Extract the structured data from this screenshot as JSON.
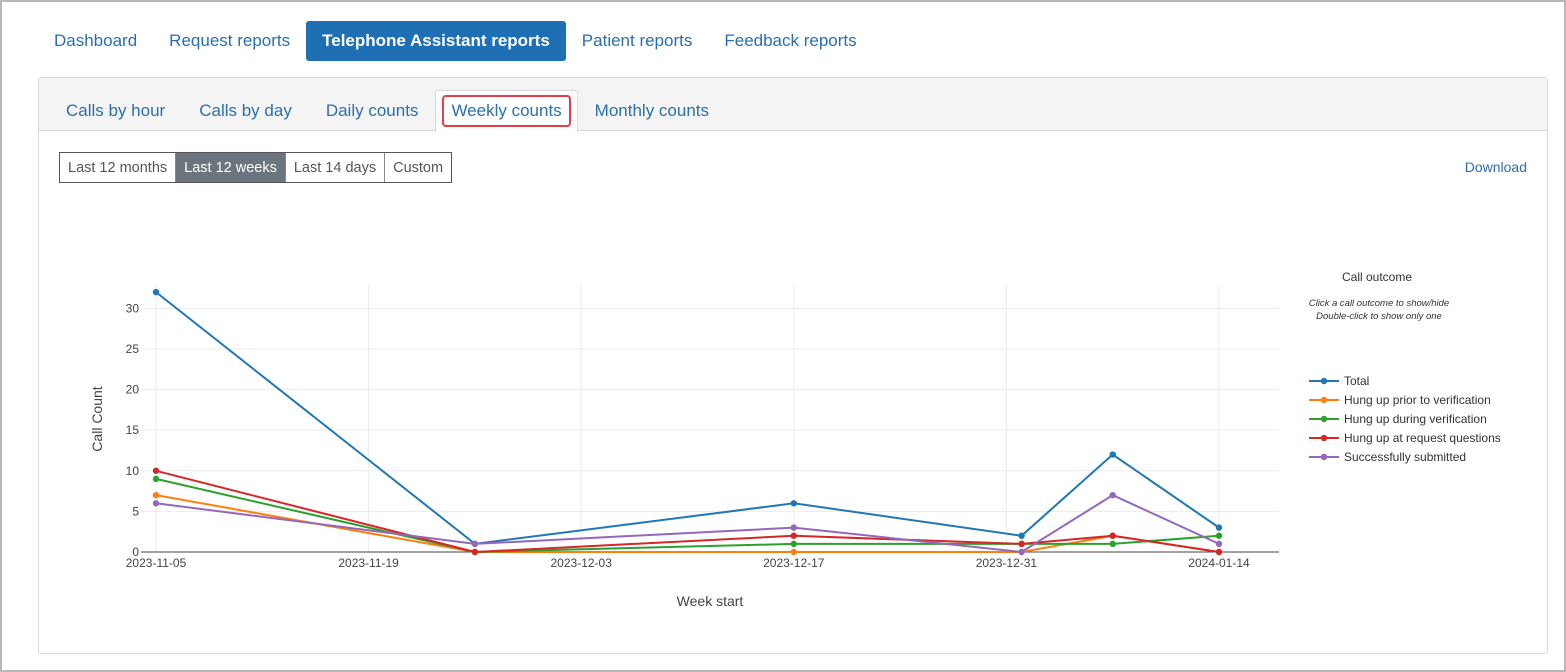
{
  "nav": {
    "tabs": [
      {
        "label": "Dashboard"
      },
      {
        "label": "Request reports"
      },
      {
        "label": "Telephone Assistant reports"
      },
      {
        "label": "Patient reports"
      },
      {
        "label": "Feedback reports"
      }
    ],
    "active_index": 2
  },
  "subnav": {
    "tabs": [
      {
        "label": "Calls by hour"
      },
      {
        "label": "Calls by day"
      },
      {
        "label": "Daily counts"
      },
      {
        "label": "Weekly counts"
      },
      {
        "label": "Monthly counts"
      }
    ],
    "active_index": 3
  },
  "range": {
    "buttons": [
      {
        "label": "Last 12 months"
      },
      {
        "label": "Last 12 weeks"
      },
      {
        "label": "Last 14 days"
      },
      {
        "label": "Custom"
      }
    ],
    "active_index": 1
  },
  "download_label": "Download",
  "chart_data": {
    "type": "line",
    "title": "",
    "xlabel": "Week start",
    "ylabel": "Call Count",
    "x": [
      "2023-11-05",
      "2023-11-26",
      "2023-12-17",
      "2024-01-01",
      "2024-01-07",
      "2024-01-14"
    ],
    "x_ticks": [
      "2023-11-05",
      "2023-11-19",
      "2023-12-03",
      "2023-12-17",
      "2023-12-31",
      "2024-01-14"
    ],
    "y_ticks": [
      0,
      5,
      10,
      15,
      20,
      25,
      30
    ],
    "xlim": [
      "2023-11-05",
      "2024-01-14"
    ],
    "ylim": [
      0,
      33
    ],
    "grid": true,
    "legend": {
      "title": "Call outcome",
      "hint_line1": "Click a call outcome to show/hide",
      "hint_line2": "Double-click to show only one",
      "placement": "right"
    },
    "series": [
      {
        "name": "Total",
        "color": "#1f77b4",
        "values": [
          32,
          1,
          6,
          2,
          12,
          3
        ]
      },
      {
        "name": "Hung up prior to verification",
        "color": "#ff7f0e",
        "values": [
          7,
          0,
          0,
          0,
          2,
          0
        ]
      },
      {
        "name": "Hung up during verification",
        "color": "#2ca02c",
        "values": [
          9,
          0,
          1,
          1,
          1,
          2
        ]
      },
      {
        "name": "Hung up at request questions",
        "color": "#d62728",
        "values": [
          10,
          0,
          2,
          1,
          2,
          0
        ]
      },
      {
        "name": "Successfully submitted",
        "color": "#9467bd",
        "values": [
          6,
          1,
          3,
          0,
          7,
          1
        ]
      }
    ]
  }
}
